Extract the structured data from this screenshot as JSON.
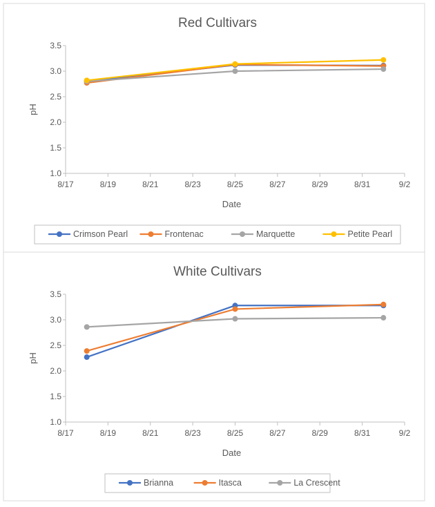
{
  "chart_data": [
    {
      "type": "line",
      "title": "Red Cultivars",
      "xlabel": "Date",
      "ylabel": "pH",
      "ylim": [
        1.0,
        3.5
      ],
      "yticks": [
        "1.0",
        "1.5",
        "2.0",
        "2.5",
        "3.0",
        "3.5"
      ],
      "xticks": [
        "8/17",
        "8/19",
        "8/21",
        "8/23",
        "8/25",
        "8/27",
        "8/29",
        "8/31",
        "9/2"
      ],
      "x_days": [
        1,
        8,
        15
      ],
      "legend": "bottom",
      "series": [
        {
          "name": "Crimson Pearl",
          "color": "#4472C4",
          "values": [
            2.8,
            3.12,
            3.11
          ]
        },
        {
          "name": "Frontenac",
          "color": "#ED7D31",
          "values": [
            2.77,
            3.13,
            3.1
          ]
        },
        {
          "name": "Marquette",
          "color": "#A5A5A5",
          "values": [
            2.8,
            3.0,
            3.04
          ]
        },
        {
          "name": "Petite Pearl",
          "color": "#FFC000",
          "values": [
            2.82,
            3.14,
            3.22
          ]
        }
      ]
    },
    {
      "type": "line",
      "title": "White Cultivars",
      "xlabel": "Date",
      "ylabel": "pH",
      "ylim": [
        1.0,
        3.5
      ],
      "yticks": [
        "1.0",
        "1.5",
        "2.0",
        "2.5",
        "3.0",
        "3.5"
      ],
      "xticks": [
        "8/17",
        "8/19",
        "8/21",
        "8/23",
        "8/25",
        "8/27",
        "8/29",
        "8/31",
        "9/2"
      ],
      "x_days": [
        1,
        8,
        15
      ],
      "legend": "bottom",
      "series": [
        {
          "name": "Brianna",
          "color": "#4472C4",
          "values": [
            2.27,
            3.28,
            3.28
          ]
        },
        {
          "name": "Itasca",
          "color": "#ED7D31",
          "values": [
            2.39,
            3.21,
            3.3
          ]
        },
        {
          "name": "La Crescent",
          "color": "#A5A5A5",
          "values": [
            2.86,
            3.02,
            3.04
          ]
        }
      ]
    }
  ]
}
